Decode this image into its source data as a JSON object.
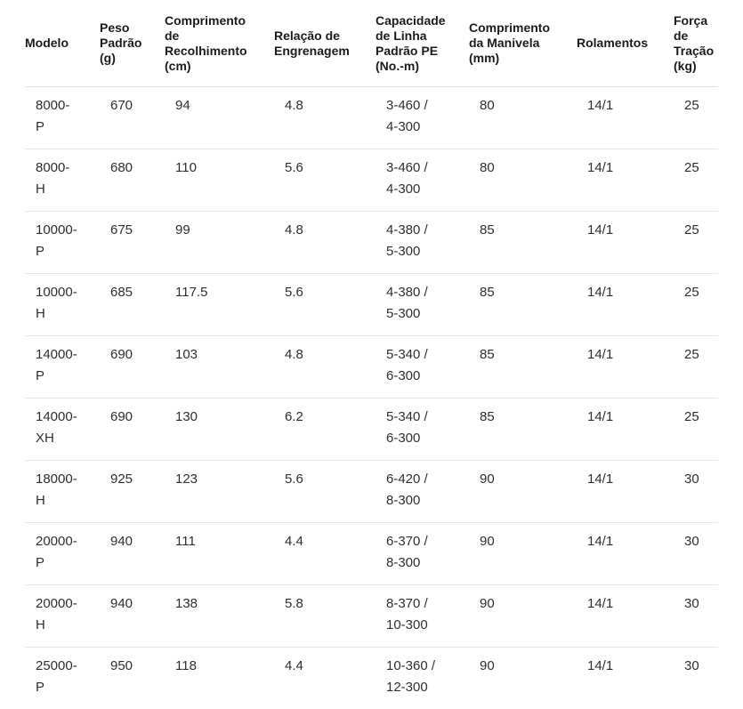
{
  "colors": {
    "background": "#ffffff",
    "header_text": "#1b1b1b",
    "body_text": "#2f2f2f",
    "divider": "#e2e2e2"
  },
  "table": {
    "columns": [
      {
        "key": "model",
        "label": "Modelo"
      },
      {
        "key": "weight",
        "label": "Peso\nPadrão\n(g)"
      },
      {
        "key": "retrieve",
        "label": "Comprimento\nde\nRecolhimento\n(cm)"
      },
      {
        "key": "gear",
        "label": "Relação de\nEngrenagem"
      },
      {
        "key": "capacity",
        "label": "Capacidade\nde Linha\nPadrão PE\n(No.-m)"
      },
      {
        "key": "handle",
        "label": "Comprimento\nda Manivela\n(mm)"
      },
      {
        "key": "bearings",
        "label": "Rolamentos"
      },
      {
        "key": "drag",
        "label": "Força\nde\nTração\n(kg)"
      }
    ],
    "rows": [
      {
        "model": "8000-\nP",
        "weight": "670",
        "retrieve": "94",
        "gear": "4.8",
        "capacity": "3-460 /\n4-300",
        "handle": "80",
        "bearings": "14/1",
        "drag": "25"
      },
      {
        "model": "8000-\nH",
        "weight": "680",
        "retrieve": "110",
        "gear": "5.6",
        "capacity": "3-460 /\n4-300",
        "handle": "80",
        "bearings": "14/1",
        "drag": "25"
      },
      {
        "model": "10000-\nP",
        "weight": "675",
        "retrieve": "99",
        "gear": "4.8",
        "capacity": "4-380 /\n5-300",
        "handle": "85",
        "bearings": "14/1",
        "drag": "25"
      },
      {
        "model": "10000-\nH",
        "weight": "685",
        "retrieve": "117.5",
        "gear": "5.6",
        "capacity": "4-380 /\n5-300",
        "handle": "85",
        "bearings": "14/1",
        "drag": "25"
      },
      {
        "model": "14000-\nP",
        "weight": "690",
        "retrieve": "103",
        "gear": "4.8",
        "capacity": "5-340 /\n6-300",
        "handle": "85",
        "bearings": "14/1",
        "drag": "25"
      },
      {
        "model": "14000-\nXH",
        "weight": "690",
        "retrieve": "130",
        "gear": "6.2",
        "capacity": "5-340 /\n6-300",
        "handle": "85",
        "bearings": "14/1",
        "drag": "25"
      },
      {
        "model": "18000-\nH",
        "weight": "925",
        "retrieve": "123",
        "gear": "5.6",
        "capacity": "6-420 /\n8-300",
        "handle": "90",
        "bearings": "14/1",
        "drag": "30"
      },
      {
        "model": "20000-\nP",
        "weight": "940",
        "retrieve": "111",
        "gear": "4.4",
        "capacity": "6-370 /\n8-300",
        "handle": "90",
        "bearings": "14/1",
        "drag": "30"
      },
      {
        "model": "20000-\nH",
        "weight": "940",
        "retrieve": "138",
        "gear": "5.8",
        "capacity": "8-370 /\n10-300",
        "handle": "90",
        "bearings": "14/1",
        "drag": "30"
      },
      {
        "model": "25000-\nP",
        "weight": "950",
        "retrieve": "118",
        "gear": "4.4",
        "capacity": "10-360 /\n12-300",
        "handle": "90",
        "bearings": "14/1",
        "drag": "30"
      }
    ]
  }
}
